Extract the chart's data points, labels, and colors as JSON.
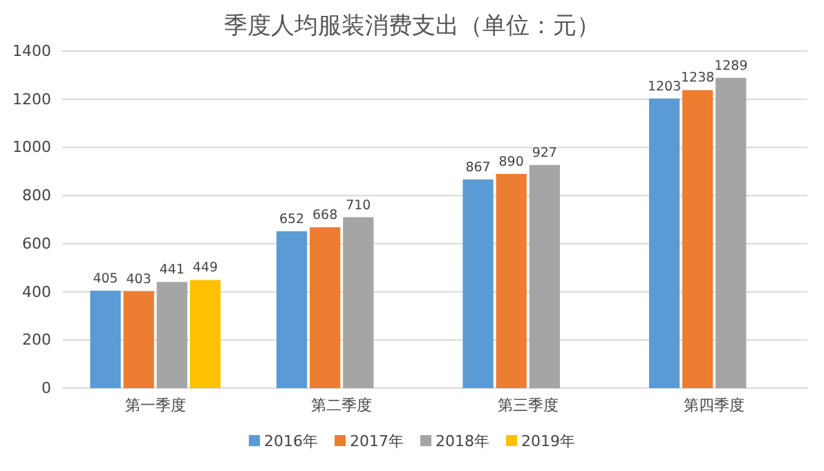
{
  "chart_data": {
    "type": "bar",
    "title": "季度人均服装消费支出（单位：元）",
    "categories": [
      "第一季度",
      "第二季度",
      "第三季度",
      "第四季度"
    ],
    "series": [
      {
        "name": "2016年",
        "color": "#5b9bd5",
        "values": [
          405,
          652,
          867,
          1203
        ]
      },
      {
        "name": "2017年",
        "color": "#ed7d31",
        "values": [
          403,
          668,
          890,
          1238
        ]
      },
      {
        "name": "2018年",
        "color": "#a5a5a5",
        "values": [
          441,
          710,
          927,
          1289
        ]
      },
      {
        "name": "2019年",
        "color": "#ffc000",
        "values": [
          449,
          null,
          null,
          null
        ]
      }
    ],
    "ylim": [
      0,
      1400
    ],
    "yticks": [
      0,
      200,
      400,
      600,
      800,
      1000,
      1200,
      1400
    ],
    "grid": "y",
    "legend": "bottom",
    "data_labels": true
  }
}
